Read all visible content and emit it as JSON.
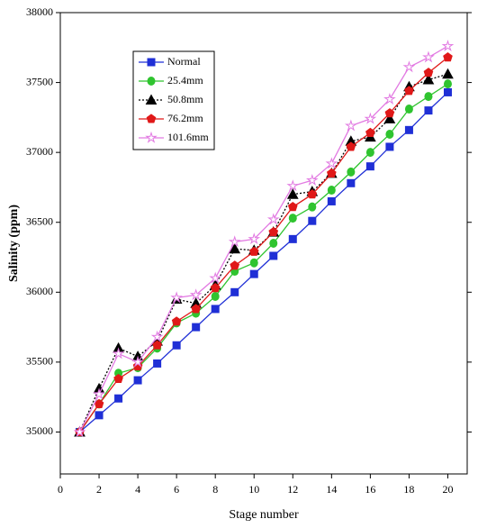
{
  "chart_data": {
    "type": "line",
    "x_label": "Stage number",
    "y_label": "Salinity (ppm)",
    "x": [
      1,
      2,
      3,
      4,
      5,
      6,
      7,
      8,
      9,
      10,
      11,
      12,
      13,
      14,
      15,
      16,
      17,
      18,
      19,
      20
    ],
    "xlim": [
      0,
      21
    ],
    "xticks": [
      0,
      2,
      4,
      6,
      8,
      10,
      12,
      14,
      16,
      18,
      20
    ],
    "ylim": [
      34700,
      38000
    ],
    "yticks": [
      35000,
      35500,
      36000,
      36500,
      37000,
      37500,
      38000
    ],
    "legend": "upper left",
    "series": [
      {
        "name": "Normal",
        "color": "#1f2fd6",
        "marker": "square",
        "dash": "solid",
        "values": [
          35000,
          35120,
          35240,
          35370,
          35490,
          35620,
          35750,
          35880,
          36000,
          36130,
          36260,
          36380,
          36510,
          36650,
          36780,
          36900,
          37040,
          37160,
          37300,
          37430
        ]
      },
      {
        "name": "25.4mm",
        "color": "#2fc42f",
        "marker": "circle",
        "dash": "solid",
        "values": [
          35000,
          35200,
          35420,
          35460,
          35600,
          35780,
          35850,
          35970,
          36150,
          36210,
          36350,
          36530,
          36610,
          36730,
          36860,
          37000,
          37130,
          37310,
          37400,
          37490
        ]
      },
      {
        "name": "50.8mm",
        "color": "#000000",
        "marker": "triangle",
        "dash": "dotted",
        "values": [
          35000,
          35310,
          35600,
          35540,
          35650,
          35950,
          35920,
          36050,
          36310,
          36300,
          36430,
          36700,
          36720,
          36850,
          37080,
          37110,
          37240,
          37470,
          37520,
          37560
        ]
      },
      {
        "name": "76.2mm",
        "color": "#e01818",
        "marker": "pentagon",
        "dash": "solid",
        "values": [
          35000,
          35200,
          35380,
          35470,
          35620,
          35790,
          35880,
          36030,
          36190,
          36290,
          36430,
          36610,
          36700,
          36850,
          37040,
          37140,
          37280,
          37440,
          37570,
          37680
        ]
      },
      {
        "name": "101.6mm",
        "color": "#e27ae2",
        "marker": "star",
        "dash": "solid",
        "values": [
          35000,
          35270,
          35560,
          35500,
          35680,
          35960,
          35980,
          36100,
          36360,
          36380,
          36520,
          36760,
          36800,
          36920,
          37190,
          37240,
          37380,
          37610,
          37680,
          37760
        ]
      }
    ]
  }
}
